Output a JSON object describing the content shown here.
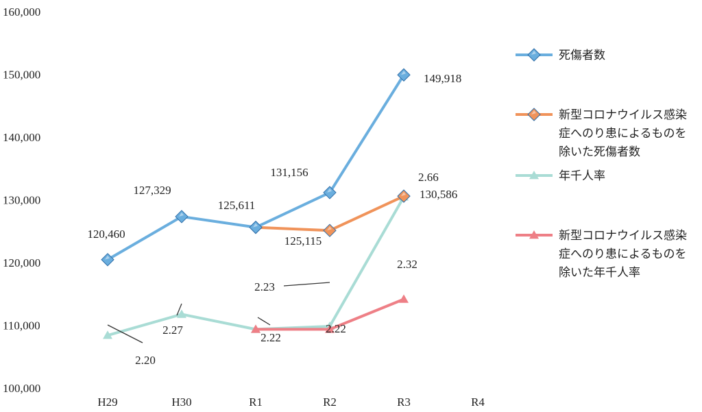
{
  "chart_data": {
    "type": "line",
    "categories": [
      "H29",
      "H30",
      "R1",
      "R2",
      "R3",
      "R4"
    ],
    "ylim": [
      100000,
      160000
    ],
    "yticks": [
      "100,000",
      "110,000",
      "120,000",
      "130,000",
      "140,000",
      "150,000",
      "160,000"
    ],
    "grid": false,
    "legend_position": "right",
    "series": [
      {
        "name": "死傷者数",
        "color": "#6aaede",
        "marker": "diamond",
        "values": [
          120460,
          127329,
          125611,
          131156,
          149918,
          null
        ],
        "labels": [
          "120,460",
          "127,329",
          "125,611",
          "131,156",
          "149,918",
          ""
        ]
      },
      {
        "name": "新型コロナウイルス感染症へのり患によるものを除いた死傷者数",
        "legend_lines": [
          "新型コロナウイルス感染",
          "症へのり患によるものを",
          "除いた死傷者数"
        ],
        "color": "#f0935a",
        "marker": "diamond",
        "values": [
          null,
          null,
          125611,
          125115,
          130586,
          null
        ],
        "labels": [
          "",
          "",
          "",
          "125,115",
          "130,586",
          ""
        ]
      },
      {
        "name": "年千人率",
        "color": "#a9dcd5",
        "marker": "triangle",
        "rate_values": [
          2.2,
          2.27,
          2.22,
          2.23,
          2.66,
          null
        ],
        "labels": [
          "2.20",
          "2.27",
          "2.22",
          "2.23",
          "2.66",
          ""
        ]
      },
      {
        "name": "新型コロナウイルス感染症へのり患によるものを除いた年千人率",
        "legend_lines": [
          "新型コロナウイルス感染",
          "症へのり患によるものを",
          "除いた年千人率"
        ],
        "color": "#ee7f86",
        "marker": "triangle",
        "rate_values": [
          null,
          null,
          2.22,
          2.22,
          2.32,
          null
        ],
        "labels": [
          "",
          "",
          "",
          "2.22",
          "2.32",
          ""
        ]
      }
    ]
  }
}
